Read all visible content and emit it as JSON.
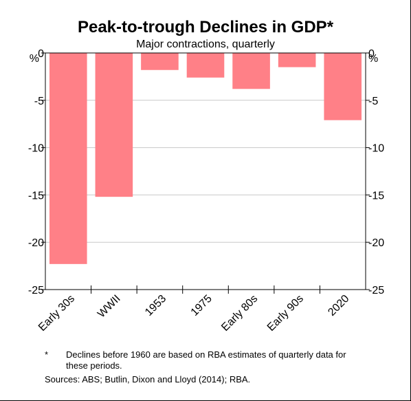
{
  "chart_data": {
    "type": "bar",
    "title": "Peak-to-trough Declines in GDP*",
    "subtitle": "Major contractions, quarterly",
    "ylabel_left": "%",
    "ylabel_right": "%",
    "categories": [
      "Early 30s",
      "WWII",
      "1953",
      "1975",
      "Early 80s",
      "Early 90s",
      "2020"
    ],
    "values": [
      -22.3,
      -15.2,
      -1.8,
      -2.6,
      -3.8,
      -1.5,
      -7.1
    ],
    "ylim": [
      -25,
      0
    ],
    "yticks": [
      0,
      -5,
      -10,
      -15,
      -20,
      -25
    ],
    "ytick_labels": [
      "0",
      "-5",
      "-10",
      "-15",
      "-20",
      "-25"
    ],
    "grid": true,
    "bar_color": "#ff8087"
  },
  "notes": {
    "footnote_mark": "*",
    "footnote_text": "Declines before 1960 are based on RBA estimates of quarterly data for these periods.",
    "sources": "Sources: ABS; Butlin, Dixon and Lloyd (2014); RBA."
  }
}
